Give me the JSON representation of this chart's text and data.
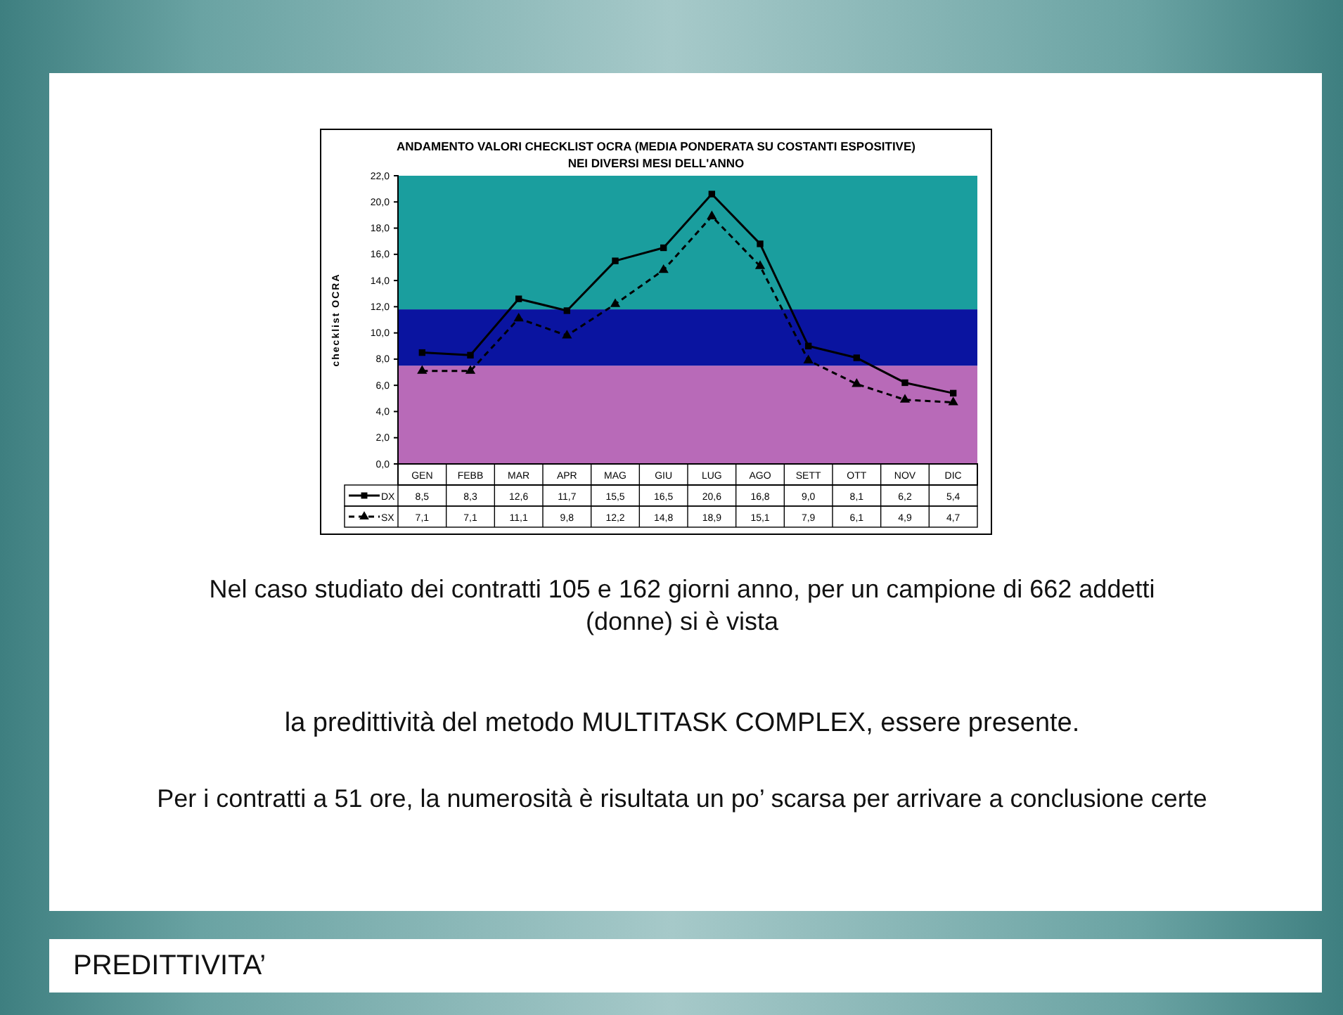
{
  "chart_data": {
    "type": "line",
    "title": "ANDAMENTO VALORI CHECKLIST OCRA (MEDIA PONDERATA SU COSTANTI ESPOSITIVE)\nNEI DIVERSI MESI DELL'ANNO",
    "ylabel": "checklist OCRA",
    "categories": [
      "GEN",
      "FEBB",
      "MAR",
      "APR",
      "MAG",
      "GIU",
      "LUG",
      "AGO",
      "SETT",
      "OTT",
      "NOV",
      "DIC"
    ],
    "series": [
      {
        "name": "DX",
        "color": "#000000",
        "marker": "square",
        "line_style": "solid",
        "values": [
          8.5,
          8.3,
          12.6,
          11.7,
          15.5,
          16.5,
          20.6,
          16.8,
          9.0,
          8.1,
          6.2,
          5.4
        ],
        "value_labels": [
          "8,5",
          "8,3",
          "12,6",
          "11,7",
          "15,5",
          "16,5",
          "20,6",
          "16,8",
          "9,0",
          "8,1",
          "6,2",
          "5,4"
        ]
      },
      {
        "name": "SX",
        "color": "#000000",
        "marker": "triangle",
        "line_style": "dashed",
        "values": [
          7.1,
          7.1,
          11.1,
          9.8,
          12.2,
          14.8,
          18.9,
          15.1,
          7.9,
          6.1,
          4.9,
          4.7
        ],
        "value_labels": [
          "7,1",
          "7,1",
          "11,1",
          "9,8",
          "12,2",
          "14,8",
          "18,9",
          "15,1",
          "7,9",
          "6,1",
          "4,9",
          "4,7"
        ]
      }
    ],
    "ylim": [
      0,
      22
    ],
    "yticks": [
      {
        "value": 0,
        "label": "0,0"
      },
      {
        "value": 2,
        "label": "2,0"
      },
      {
        "value": 4,
        "label": "4,0"
      },
      {
        "value": 6,
        "label": "6,0"
      },
      {
        "value": 8,
        "label": "8,0"
      },
      {
        "value": 10,
        "label": "10,0"
      },
      {
        "value": 12,
        "label": "12,0"
      },
      {
        "value": 14,
        "label": "14,0"
      },
      {
        "value": 16,
        "label": "16,0"
      },
      {
        "value": 18,
        "label": "18,0"
      },
      {
        "value": 20,
        "label": "20,0"
      },
      {
        "value": 22,
        "label": "22,0"
      }
    ],
    "bands": [
      {
        "axis": "y",
        "from": 0,
        "to": 7.5,
        "color": "#b86ab8"
      },
      {
        "axis": "y",
        "from": 7.5,
        "to": 11.8,
        "color": "#0a14a0"
      },
      {
        "axis": "y",
        "from": 11.8,
        "to": 22,
        "color": "#1a9e9e"
      }
    ],
    "legend": "bottom left",
    "grid": false,
    "annotations": [
      "Nel caso studiato dei contratti 105 e 162 giorni anno, per un campione di 662 addetti (donne) si è vista",
      "la predittività del metodo MULTITASK COMPLEX, essere presente.",
      "Per i contratti a 51 ore, la numerosità è risultata un po’ scarsa per arrivare a conclusione certe",
      "PREDITTIVITA’"
    ]
  }
}
